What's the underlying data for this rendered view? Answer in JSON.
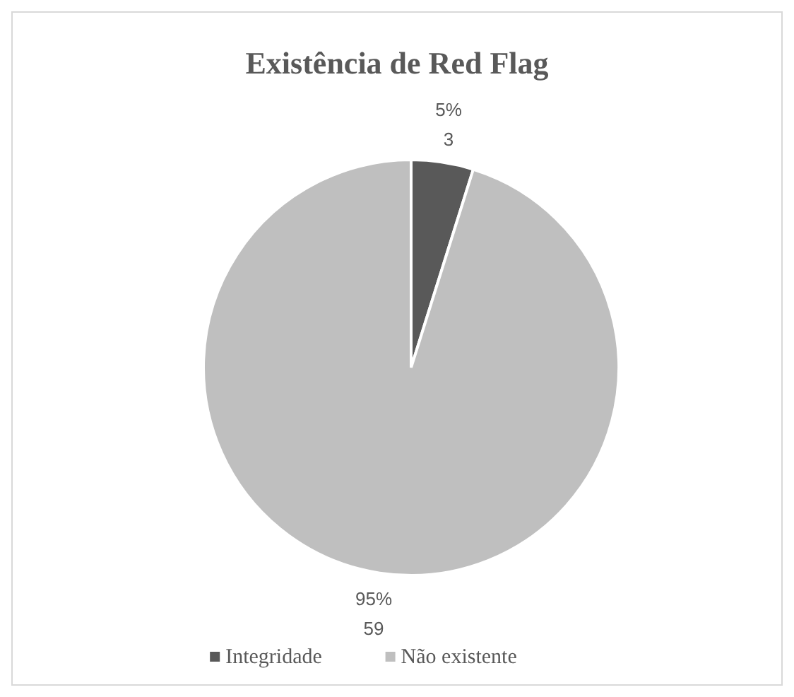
{
  "chart_data": {
    "type": "pie",
    "title": "Existência de Red Flag",
    "categories": [
      "Integridade",
      "Não existente"
    ],
    "values": [
      3,
      59
    ],
    "colors": [
      "#595959",
      "#bfbfbf"
    ],
    "value_labels": [
      "5%\n3",
      "95%\n59"
    ],
    "legend": "bottom"
  }
}
